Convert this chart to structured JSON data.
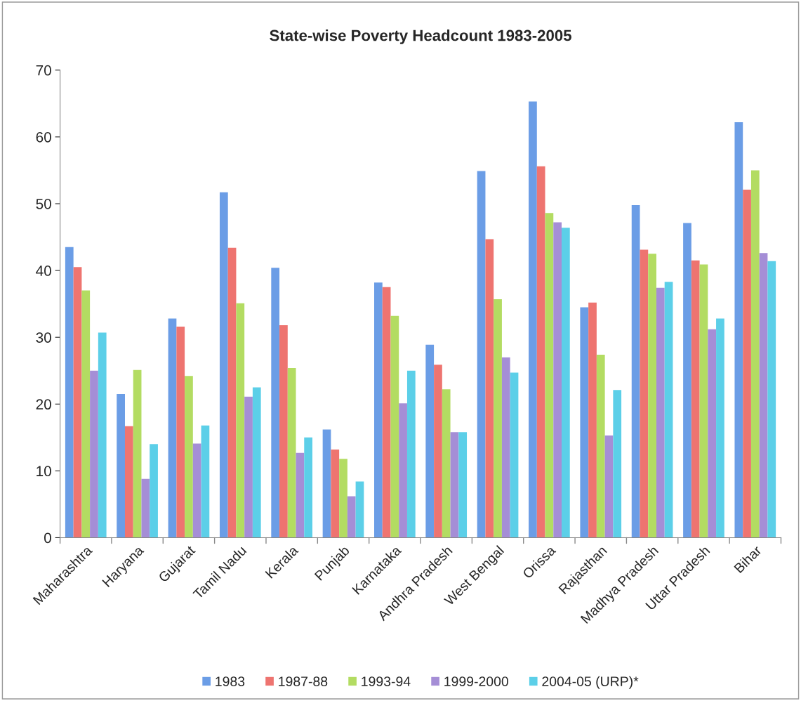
{
  "chart_data": {
    "type": "bar",
    "title": "State-wise Poverty Headcount 1983-2005",
    "categories": [
      "Maharashtra",
      "Haryana",
      "Gujarat",
      "Tamil Nadu",
      "Kerala",
      "Punjab",
      "Karnataka",
      "Andhra Pradesh",
      "West Bengal",
      "Orissa",
      "Rajasthan",
      "Madhya Pradesh",
      "Uttar Pradesh",
      "Bihar"
    ],
    "series": [
      {
        "name": "1983",
        "color": "#6b9de6",
        "values": [
          43.5,
          21.5,
          32.8,
          51.7,
          40.4,
          16.2,
          38.2,
          28.9,
          54.9,
          65.3,
          34.5,
          49.8,
          47.1,
          62.2
        ]
      },
      {
        "name": "1987-88",
        "color": "#ee7470",
        "values": [
          40.5,
          16.7,
          31.6,
          43.4,
          31.8,
          13.2,
          37.5,
          25.9,
          44.7,
          55.6,
          35.2,
          43.1,
          41.5,
          52.1
        ]
      },
      {
        "name": "1993-94",
        "color": "#b3dc62",
        "values": [
          37.0,
          25.1,
          24.2,
          35.1,
          25.4,
          11.8,
          33.2,
          22.2,
          35.7,
          48.6,
          27.4,
          42.5,
          40.9,
          55.0
        ]
      },
      {
        "name": "1999-2000",
        "color": "#a58ed6",
        "values": [
          25.0,
          8.8,
          14.1,
          21.1,
          12.7,
          6.2,
          20.1,
          15.8,
          27.0,
          47.2,
          15.3,
          37.4,
          31.2,
          42.6
        ]
      },
      {
        "name": "2004-05 (URP)*",
        "color": "#5ccfe8",
        "values": [
          30.7,
          14.0,
          16.8,
          22.5,
          15.0,
          8.4,
          25.0,
          15.8,
          24.7,
          46.4,
          22.1,
          38.3,
          32.8,
          41.4
        ]
      }
    ],
    "ylim": [
      0,
      70
    ],
    "yticks": [
      0,
      10,
      20,
      30,
      40,
      50,
      60,
      70
    ],
    "grid": false,
    "legend": "bottom"
  }
}
